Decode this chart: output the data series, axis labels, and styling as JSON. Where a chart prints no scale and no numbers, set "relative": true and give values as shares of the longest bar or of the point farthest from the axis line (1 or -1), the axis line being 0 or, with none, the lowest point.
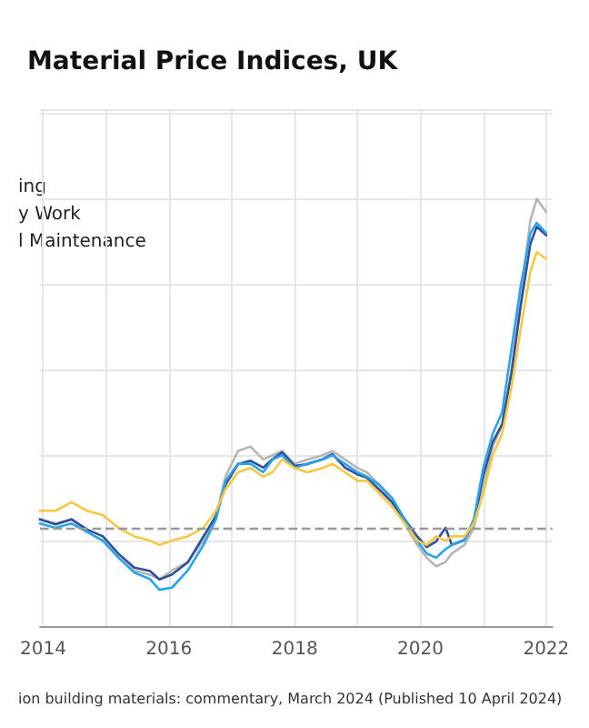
{
  "chart_data": {
    "type": "line",
    "title": "Material Price Indices, UK",
    "relative": true,
    "grid": true,
    "marker": "none",
    "line_style": "solid",
    "xlim": [
      2013.95,
      2022.1
    ],
    "xticks": [
      2014,
      {
        "value": 2015,
        "label": null
      },
      2016,
      {
        "value": 2017,
        "label": null
      },
      2018,
      {
        "value": 2019,
        "label": null
      },
      2020,
      {
        "value": 2021,
        "label": null
      },
      2022
    ],
    "x": [
      2013.95,
      2014.2,
      2014.45,
      2014.7,
      2014.95,
      2015.2,
      2015.45,
      2015.7,
      2015.85,
      2016.05,
      2016.3,
      2016.55,
      2016.75,
      2016.9,
      2017.1,
      2017.3,
      2017.5,
      2017.65,
      2017.8,
      2018.0,
      2018.2,
      2018.45,
      2018.6,
      2018.8,
      2019.0,
      2019.15,
      2019.35,
      2019.55,
      2019.75,
      2019.95,
      2020.1,
      2020.25,
      2020.4,
      2020.5,
      2020.7,
      2020.85,
      2021.0,
      2021.15,
      2021.3,
      2021.45,
      2021.6,
      2021.75,
      2021.85,
      2022.0
    ],
    "series": [
      {
        "color": "#b5b5b5",
        "values": [
          0.25,
          0.24,
          0.25,
          0.22,
          0.2,
          0.16,
          0.13,
          0.12,
          0.11,
          0.13,
          0.15,
          0.2,
          0.26,
          0.35,
          0.41,
          0.42,
          0.39,
          0.4,
          0.41,
          0.38,
          0.39,
          0.4,
          0.41,
          0.39,
          0.37,
          0.36,
          0.33,
          0.29,
          0.24,
          0.19,
          0.16,
          0.14,
          0.15,
          0.17,
          0.19,
          0.23,
          0.32,
          0.42,
          0.47,
          0.6,
          0.78,
          0.95,
          1.0,
          0.97
        ]
      },
      {
        "color": "#2e4f9a",
        "values": [
          0.25,
          0.238,
          0.25,
          0.226,
          0.21,
          0.169,
          0.137,
          0.129,
          0.109,
          0.121,
          0.149,
          0.21,
          0.258,
          0.331,
          0.379,
          0.387,
          0.371,
          0.391,
          0.407,
          0.375,
          0.379,
          0.391,
          0.403,
          0.371,
          0.355,
          0.347,
          0.319,
          0.29,
          0.25,
          0.21,
          0.185,
          0.198,
          0.23,
          0.19,
          0.202,
          0.242,
          0.351,
          0.431,
          0.472,
          0.593,
          0.754,
          0.895,
          0.935,
          0.915
        ]
      },
      {
        "color": "#2aa3e8",
        "values": [
          0.24,
          0.23,
          0.24,
          0.22,
          0.2,
          0.16,
          0.125,
          0.11,
          0.085,
          0.09,
          0.13,
          0.19,
          0.25,
          0.34,
          0.38,
          0.38,
          0.36,
          0.39,
          0.4,
          0.37,
          0.38,
          0.39,
          0.4,
          0.38,
          0.36,
          0.35,
          0.33,
          0.3,
          0.25,
          0.2,
          0.17,
          0.16,
          0.18,
          0.19,
          0.2,
          0.25,
          0.37,
          0.45,
          0.5,
          0.65,
          0.8,
          0.92,
          0.944,
          0.92
        ]
      },
      {
        "color": "#f5c842",
        "values": [
          0.27,
          0.27,
          0.29,
          0.27,
          0.26,
          0.23,
          0.21,
          0.2,
          0.19,
          0.2,
          0.21,
          0.23,
          0.27,
          0.32,
          0.36,
          0.37,
          0.35,
          0.36,
          0.39,
          0.37,
          0.36,
          0.37,
          0.38,
          0.36,
          0.34,
          0.34,
          0.31,
          0.28,
          0.24,
          0.2,
          0.19,
          0.21,
          0.2,
          0.21,
          0.21,
          0.24,
          0.31,
          0.4,
          0.45,
          0.56,
          0.7,
          0.83,
          0.875,
          0.86
        ]
      }
    ],
    "ref_lines": [
      {
        "axis": "y",
        "value": 0.226,
        "color": "#999999",
        "line_style": "dashed"
      }
    ],
    "annotations": [
      "ing",
      "y Work",
      "l Maintenance",
      "ion building materials: commentary, March 2024 (Published 10 April 2024)"
    ]
  }
}
